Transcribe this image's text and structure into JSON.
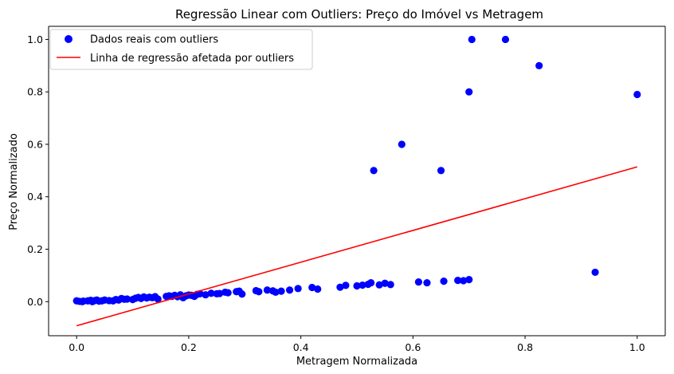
{
  "chart_data": {
    "type": "scatter",
    "title": "Regressão Linear com Outliers: Preço do Imóvel vs Metragem",
    "xlabel": "Metragem Normalizada",
    "ylabel": "Preço Normalizado",
    "xlim": [
      -0.05,
      1.05
    ],
    "ylim": [
      -0.13,
      1.05
    ],
    "xticks": [
      0.0,
      0.2,
      0.4,
      0.6,
      0.8,
      1.0
    ],
    "xtick_labels": [
      "0.0",
      "0.2",
      "0.4",
      "0.6",
      "0.8",
      "1.0"
    ],
    "yticks": [
      0.0,
      0.2,
      0.4,
      0.6,
      0.8,
      1.0
    ],
    "ytick_labels": [
      "0.0",
      "0.2",
      "0.4",
      "0.6",
      "0.8",
      "1.0"
    ],
    "grid": false,
    "legend_position": "top-left",
    "series": [
      {
        "name": "Dados reais com outliers",
        "kind": "scatter",
        "color": "#0000ff",
        "points": [
          [
            0.0,
            0.003
          ],
          [
            0.005,
            0.001
          ],
          [
            0.01,
            0.0
          ],
          [
            0.012,
            0.002
          ],
          [
            0.02,
            0.003
          ],
          [
            0.025,
            0.005
          ],
          [
            0.028,
            0.0
          ],
          [
            0.032,
            0.004
          ],
          [
            0.036,
            0.006
          ],
          [
            0.04,
            0.002
          ],
          [
            0.045,
            0.003
          ],
          [
            0.05,
            0.006
          ],
          [
            0.058,
            0.004
          ],
          [
            0.065,
            0.003
          ],
          [
            0.07,
            0.008
          ],
          [
            0.075,
            0.006
          ],
          [
            0.08,
            0.012
          ],
          [
            0.085,
            0.009
          ],
          [
            0.09,
            0.01
          ],
          [
            0.1,
            0.008
          ],
          [
            0.105,
            0.013
          ],
          [
            0.11,
            0.016
          ],
          [
            0.115,
            0.012
          ],
          [
            0.12,
            0.018
          ],
          [
            0.125,
            0.014
          ],
          [
            0.13,
            0.017
          ],
          [
            0.135,
            0.015
          ],
          [
            0.14,
            0.019
          ],
          [
            0.145,
            0.01
          ],
          [
            0.16,
            0.02
          ],
          [
            0.165,
            0.022
          ],
          [
            0.17,
            0.02
          ],
          [
            0.175,
            0.024
          ],
          [
            0.18,
            0.019
          ],
          [
            0.185,
            0.026
          ],
          [
            0.19,
            0.015
          ],
          [
            0.195,
            0.022
          ],
          [
            0.2,
            0.025
          ],
          [
            0.205,
            0.024
          ],
          [
            0.21,
            0.02
          ],
          [
            0.215,
            0.028
          ],
          [
            0.22,
            0.03
          ],
          [
            0.23,
            0.026
          ],
          [
            0.24,
            0.032
          ],
          [
            0.25,
            0.03
          ],
          [
            0.255,
            0.031
          ],
          [
            0.265,
            0.036
          ],
          [
            0.27,
            0.034
          ],
          [
            0.285,
            0.038
          ],
          [
            0.29,
            0.04
          ],
          [
            0.295,
            0.029
          ],
          [
            0.32,
            0.042
          ],
          [
            0.325,
            0.038
          ],
          [
            0.34,
            0.044
          ],
          [
            0.35,
            0.041
          ],
          [
            0.355,
            0.036
          ],
          [
            0.365,
            0.04
          ],
          [
            0.38,
            0.044
          ],
          [
            0.395,
            0.05
          ],
          [
            0.42,
            0.054
          ],
          [
            0.43,
            0.048
          ],
          [
            0.47,
            0.055
          ],
          [
            0.48,
            0.062
          ],
          [
            0.5,
            0.06
          ],
          [
            0.51,
            0.063
          ],
          [
            0.52,
            0.066
          ],
          [
            0.525,
            0.072
          ],
          [
            0.54,
            0.064
          ],
          [
            0.55,
            0.07
          ],
          [
            0.56,
            0.065
          ],
          [
            0.61,
            0.075
          ],
          [
            0.625,
            0.072
          ],
          [
            0.655,
            0.078
          ],
          [
            0.68,
            0.081
          ],
          [
            0.69,
            0.08
          ],
          [
            0.7,
            0.084
          ],
          [
            0.53,
            0.5
          ],
          [
            0.58,
            0.6
          ],
          [
            0.65,
            0.5
          ],
          [
            0.7,
            0.8
          ],
          [
            0.705,
            1.0
          ],
          [
            0.765,
            1.0
          ],
          [
            0.825,
            0.9
          ],
          [
            0.925,
            0.112
          ],
          [
            1.0,
            0.79
          ]
        ]
      },
      {
        "name": "Linha de regressão afetada por outliers",
        "kind": "line",
        "color": "#ff0000",
        "points": [
          [
            0.0,
            -0.092
          ],
          [
            1.0,
            0.514
          ]
        ]
      }
    ]
  }
}
